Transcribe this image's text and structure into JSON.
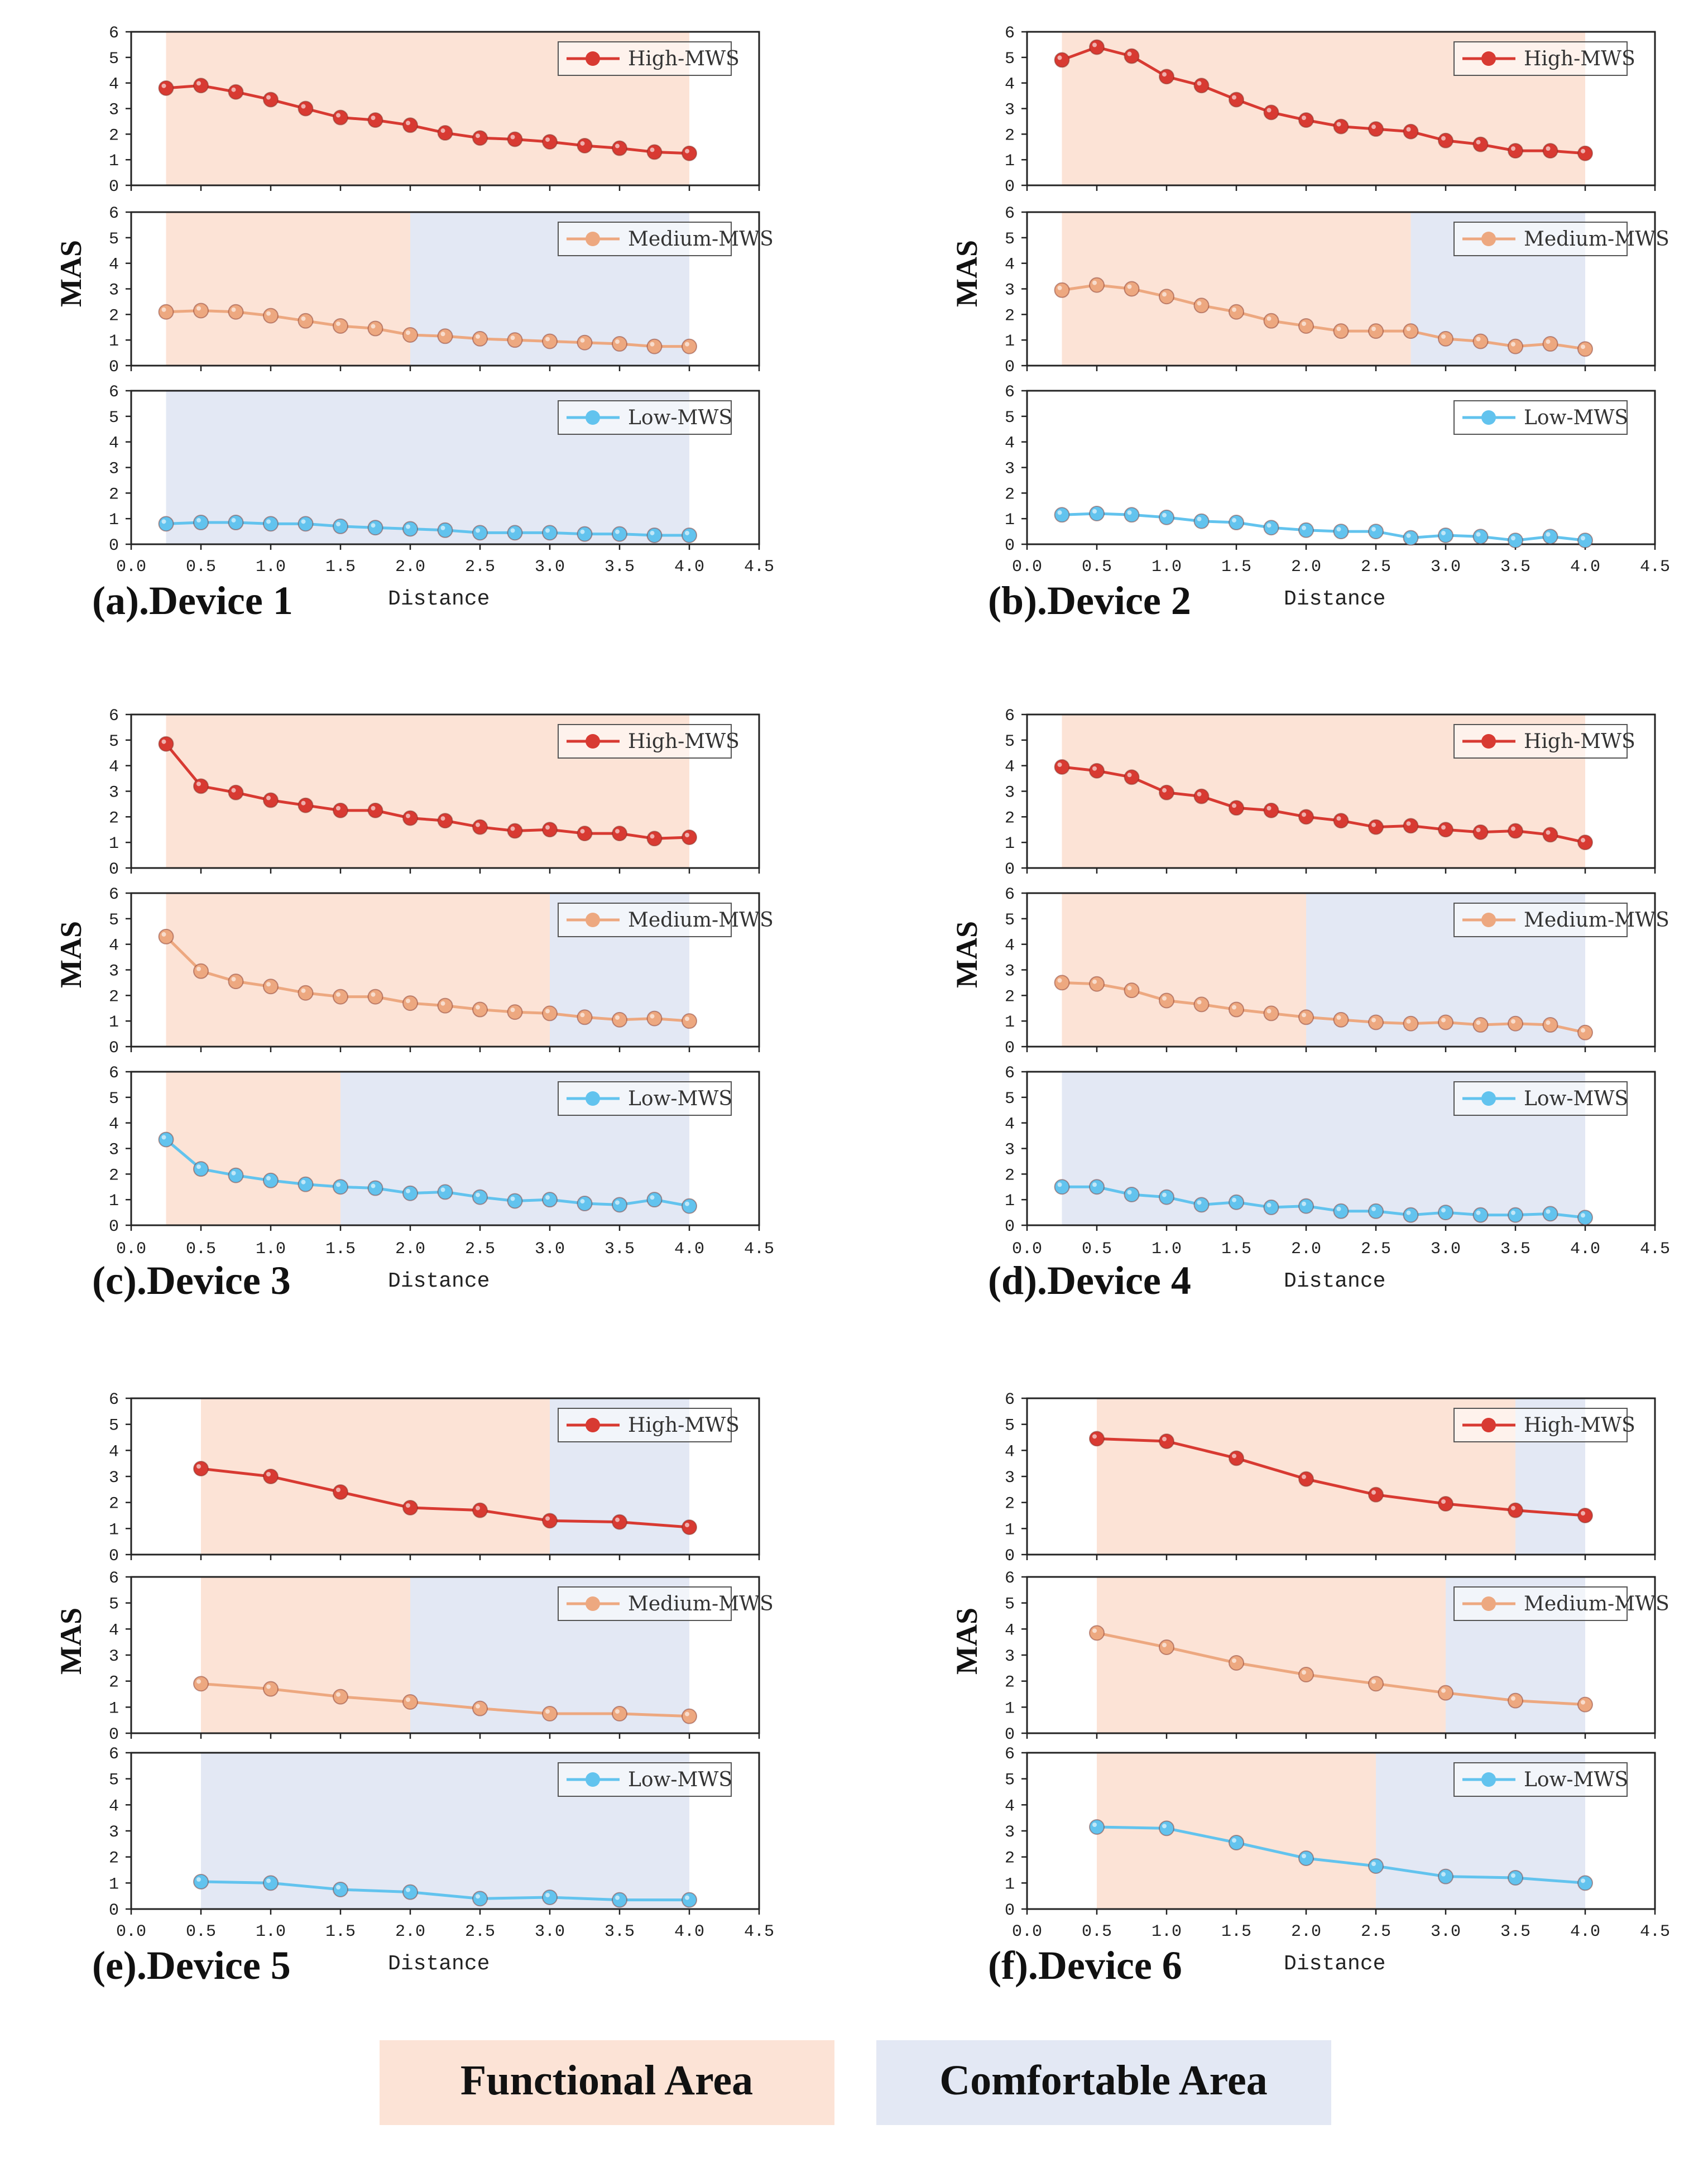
{
  "colors": {
    "functional_area": "#fce3d6",
    "comfortable_area": "#e3e8f4",
    "high": "#d83a32",
    "medium": "#eda880",
    "low": "#62c3ee",
    "axis": "#222222"
  },
  "legend": {
    "functional": "Functional Area",
    "comfortable": "Comfortable Area"
  },
  "shared_axis": {
    "xlabel": "Distance",
    "ylabel": "MAS",
    "xlim": [
      0,
      4.5
    ],
    "ylim": [
      0,
      6
    ],
    "xticks": [
      "0.0",
      "0.5",
      "1.0",
      "1.5",
      "2.0",
      "2.5",
      "3.0",
      "3.5",
      "4.0",
      "4.5"
    ],
    "yticks": [
      "0",
      "1",
      "2",
      "3",
      "4",
      "5",
      "6"
    ]
  },
  "chart_data": [
    {
      "type": "line",
      "title": "(a).Device 1",
      "xlabel": "Distance",
      "ylabel": "MAS",
      "xlim": [
        0,
        4.5
      ],
      "ylim": [
        0,
        6
      ],
      "series": [
        {
          "name": "High-MWS",
          "x": [
            0.25,
            0.5,
            0.75,
            1.0,
            1.25,
            1.5,
            1.75,
            2.0,
            2.25,
            2.5,
            2.75,
            3.0,
            3.25,
            3.5,
            3.75,
            4.0
          ],
          "values": [
            3.8,
            3.9,
            3.65,
            3.35,
            3.0,
            2.65,
            2.55,
            2.35,
            2.05,
            1.85,
            1.8,
            1.7,
            1.55,
            1.45,
            1.3,
            1.25
          ],
          "functional_range": [
            0.25,
            4.0
          ],
          "comfortable_range": null
        },
        {
          "name": "Medium-MWS",
          "x": [
            0.25,
            0.5,
            0.75,
            1.0,
            1.25,
            1.5,
            1.75,
            2.0,
            2.25,
            2.5,
            2.75,
            3.0,
            3.25,
            3.5,
            3.75,
            4.0
          ],
          "values": [
            2.1,
            2.15,
            2.1,
            1.95,
            1.75,
            1.55,
            1.45,
            1.2,
            1.15,
            1.05,
            1.0,
            0.95,
            0.9,
            0.85,
            0.75,
            0.75
          ],
          "functional_range": [
            0.25,
            2.0
          ],
          "comfortable_range": [
            2.0,
            4.0
          ]
        },
        {
          "name": "Low-MWS",
          "x": [
            0.25,
            0.5,
            0.75,
            1.0,
            1.25,
            1.5,
            1.75,
            2.0,
            2.25,
            2.5,
            2.75,
            3.0,
            3.25,
            3.5,
            3.75,
            4.0
          ],
          "values": [
            0.8,
            0.85,
            0.85,
            0.8,
            0.8,
            0.7,
            0.65,
            0.6,
            0.55,
            0.45,
            0.45,
            0.45,
            0.4,
            0.4,
            0.35,
            0.35
          ],
          "functional_range": null,
          "comfortable_range": [
            0.25,
            4.0
          ]
        }
      ]
    },
    {
      "type": "line",
      "title": "(b).Device 2",
      "xlabel": "Distance",
      "ylabel": "MAS",
      "xlim": [
        0,
        4.5
      ],
      "ylim": [
        0,
        6
      ],
      "series": [
        {
          "name": "High-MWS",
          "x": [
            0.25,
            0.5,
            0.75,
            1.0,
            1.25,
            1.5,
            1.75,
            2.0,
            2.25,
            2.5,
            2.75,
            3.0,
            3.25,
            3.5,
            3.75,
            4.0
          ],
          "values": [
            4.9,
            5.4,
            5.05,
            4.25,
            3.9,
            3.35,
            2.85,
            2.55,
            2.3,
            2.2,
            2.1,
            1.75,
            1.6,
            1.35,
            1.35,
            1.25
          ],
          "functional_range": [
            0.25,
            4.0
          ],
          "comfortable_range": null
        },
        {
          "name": "Medium-MWS",
          "x": [
            0.25,
            0.5,
            0.75,
            1.0,
            1.25,
            1.5,
            1.75,
            2.0,
            2.25,
            2.5,
            2.75,
            3.0,
            3.25,
            3.5,
            3.75,
            4.0
          ],
          "values": [
            2.95,
            3.15,
            3.0,
            2.7,
            2.35,
            2.1,
            1.75,
            1.55,
            1.35,
            1.35,
            1.35,
            1.05,
            0.95,
            0.75,
            0.85,
            0.65
          ],
          "functional_range": [
            0.25,
            2.75
          ],
          "comfortable_range": [
            2.75,
            4.0
          ]
        },
        {
          "name": "Low-MWS",
          "x": [
            0.25,
            0.5,
            0.75,
            1.0,
            1.25,
            1.5,
            1.75,
            2.0,
            2.25,
            2.5,
            2.75,
            3.0,
            3.25,
            3.5,
            3.75,
            4.0
          ],
          "values": [
            1.15,
            1.2,
            1.15,
            1.05,
            0.9,
            0.85,
            0.65,
            0.55,
            0.5,
            0.5,
            0.25,
            0.35,
            0.3,
            0.15,
            0.3,
            0.15
          ],
          "functional_range": null,
          "comfortable_range": null
        }
      ]
    },
    {
      "type": "line",
      "title": "(c).Device 3",
      "xlabel": "Distance",
      "ylabel": "MAS",
      "xlim": [
        0,
        4.5
      ],
      "ylim": [
        0,
        6
      ],
      "series": [
        {
          "name": "High-MWS",
          "x": [
            0.25,
            0.5,
            0.75,
            1.0,
            1.25,
            1.5,
            1.75,
            2.0,
            2.25,
            2.5,
            2.75,
            3.0,
            3.25,
            3.5,
            3.75,
            4.0
          ],
          "values": [
            4.85,
            3.2,
            2.95,
            2.65,
            2.45,
            2.25,
            2.25,
            1.95,
            1.85,
            1.6,
            1.45,
            1.5,
            1.35,
            1.35,
            1.15,
            1.2
          ],
          "functional_range": [
            0.25,
            4.0
          ],
          "comfortable_range": null
        },
        {
          "name": "Medium-MWS",
          "x": [
            0.25,
            0.5,
            0.75,
            1.0,
            1.25,
            1.5,
            1.75,
            2.0,
            2.25,
            2.5,
            2.75,
            3.0,
            3.25,
            3.5,
            3.75,
            4.0
          ],
          "values": [
            4.3,
            2.95,
            2.55,
            2.35,
            2.1,
            1.95,
            1.95,
            1.7,
            1.6,
            1.45,
            1.35,
            1.3,
            1.15,
            1.05,
            1.1,
            1.0
          ],
          "functional_range": [
            0.25,
            3.0
          ],
          "comfortable_range": [
            3.0,
            4.0
          ]
        },
        {
          "name": "Low-MWS",
          "x": [
            0.25,
            0.5,
            0.75,
            1.0,
            1.25,
            1.5,
            1.75,
            2.0,
            2.25,
            2.5,
            2.75,
            3.0,
            3.25,
            3.5,
            3.75,
            4.0
          ],
          "values": [
            3.35,
            2.2,
            1.95,
            1.75,
            1.6,
            1.5,
            1.45,
            1.25,
            1.3,
            1.1,
            0.95,
            1.0,
            0.85,
            0.8,
            1.0,
            0.75
          ],
          "functional_range": [
            0.25,
            1.5
          ],
          "comfortable_range": [
            1.5,
            4.0
          ]
        }
      ]
    },
    {
      "type": "line",
      "title": "(d).Device 4",
      "xlabel": "Distance",
      "ylabel": "MAS",
      "xlim": [
        0,
        4.5
      ],
      "ylim": [
        0,
        6
      ],
      "series": [
        {
          "name": "High-MWS",
          "x": [
            0.25,
            0.5,
            0.75,
            1.0,
            1.25,
            1.5,
            1.75,
            2.0,
            2.25,
            2.5,
            2.75,
            3.0,
            3.25,
            3.5,
            3.75,
            4.0
          ],
          "values": [
            3.95,
            3.8,
            3.55,
            2.95,
            2.8,
            2.35,
            2.25,
            2.0,
            1.85,
            1.6,
            1.65,
            1.5,
            1.4,
            1.45,
            1.3,
            1.0
          ],
          "functional_range": [
            0.25,
            4.0
          ],
          "comfortable_range": null
        },
        {
          "name": "Medium-MWS",
          "x": [
            0.25,
            0.5,
            0.75,
            1.0,
            1.25,
            1.5,
            1.75,
            2.0,
            2.25,
            2.5,
            2.75,
            3.0,
            3.25,
            3.5,
            3.75,
            4.0
          ],
          "values": [
            2.5,
            2.45,
            2.2,
            1.8,
            1.65,
            1.45,
            1.3,
            1.15,
            1.05,
            0.95,
            0.9,
            0.95,
            0.85,
            0.9,
            0.85,
            0.55
          ],
          "functional_range": [
            0.25,
            2.0
          ],
          "comfortable_range": [
            2.0,
            4.0
          ]
        },
        {
          "name": "Low-MWS",
          "x": [
            0.25,
            0.5,
            0.75,
            1.0,
            1.25,
            1.5,
            1.75,
            2.0,
            2.25,
            2.5,
            2.75,
            3.0,
            3.25,
            3.5,
            3.75,
            4.0
          ],
          "values": [
            1.5,
            1.5,
            1.2,
            1.1,
            0.8,
            0.9,
            0.7,
            0.75,
            0.55,
            0.55,
            0.4,
            0.5,
            0.4,
            0.4,
            0.45,
            0.3
          ],
          "functional_range": null,
          "comfortable_range": [
            0.25,
            4.0
          ]
        }
      ]
    },
    {
      "type": "line",
      "title": "(e).Device 5",
      "xlabel": "Distance",
      "ylabel": "MAS",
      "xlim": [
        0,
        4.5
      ],
      "ylim": [
        0,
        6
      ],
      "series": [
        {
          "name": "High-MWS",
          "x": [
            0.5,
            1.0,
            1.5,
            2.0,
            2.5,
            3.0,
            3.5,
            4.0
          ],
          "values": [
            3.3,
            3.0,
            2.4,
            1.8,
            1.7,
            1.3,
            1.25,
            1.05
          ],
          "functional_range": [
            0.5,
            3.0
          ],
          "comfortable_range": [
            3.0,
            4.0
          ]
        },
        {
          "name": "Medium-MWS",
          "x": [
            0.5,
            1.0,
            1.5,
            2.0,
            2.5,
            3.0,
            3.5,
            4.0
          ],
          "values": [
            1.9,
            1.7,
            1.4,
            1.2,
            0.95,
            0.75,
            0.75,
            0.65
          ],
          "functional_range": [
            0.5,
            2.0
          ],
          "comfortable_range": [
            2.0,
            4.0
          ]
        },
        {
          "name": "Low-MWS",
          "x": [
            0.5,
            1.0,
            1.5,
            2.0,
            2.5,
            3.0,
            3.5,
            4.0
          ],
          "values": [
            1.05,
            1.0,
            0.75,
            0.65,
            0.4,
            0.45,
            0.35,
            0.35
          ],
          "functional_range": null,
          "comfortable_range": [
            0.5,
            4.0
          ]
        }
      ]
    },
    {
      "type": "line",
      "title": "(f).Device 6",
      "xlabel": "Distance",
      "ylabel": "MAS",
      "xlim": [
        0,
        4.5
      ],
      "ylim": [
        0,
        6
      ],
      "series": [
        {
          "name": "High-MWS",
          "x": [
            0.5,
            1.0,
            1.5,
            2.0,
            2.5,
            3.0,
            3.5,
            4.0
          ],
          "values": [
            4.45,
            4.35,
            3.7,
            2.9,
            2.3,
            1.95,
            1.7,
            1.5
          ],
          "functional_range": [
            0.5,
            3.5
          ],
          "comfortable_range": [
            3.5,
            4.0
          ]
        },
        {
          "name": "Medium-MWS",
          "x": [
            0.5,
            1.0,
            1.5,
            2.0,
            2.5,
            3.0,
            3.5,
            4.0
          ],
          "values": [
            3.85,
            3.3,
            2.7,
            2.25,
            1.9,
            1.55,
            1.25,
            1.1
          ],
          "functional_range": [
            0.5,
            3.0
          ],
          "comfortable_range": [
            3.0,
            4.0
          ]
        },
        {
          "name": "Low-MWS",
          "x": [
            0.5,
            1.0,
            1.5,
            2.0,
            2.5,
            3.0,
            3.5,
            4.0
          ],
          "values": [
            3.15,
            3.1,
            2.55,
            1.95,
            1.65,
            1.25,
            1.2,
            1.0
          ],
          "functional_range": [
            0.5,
            2.5
          ],
          "comfortable_range": [
            2.5,
            4.0
          ]
        }
      ]
    }
  ]
}
